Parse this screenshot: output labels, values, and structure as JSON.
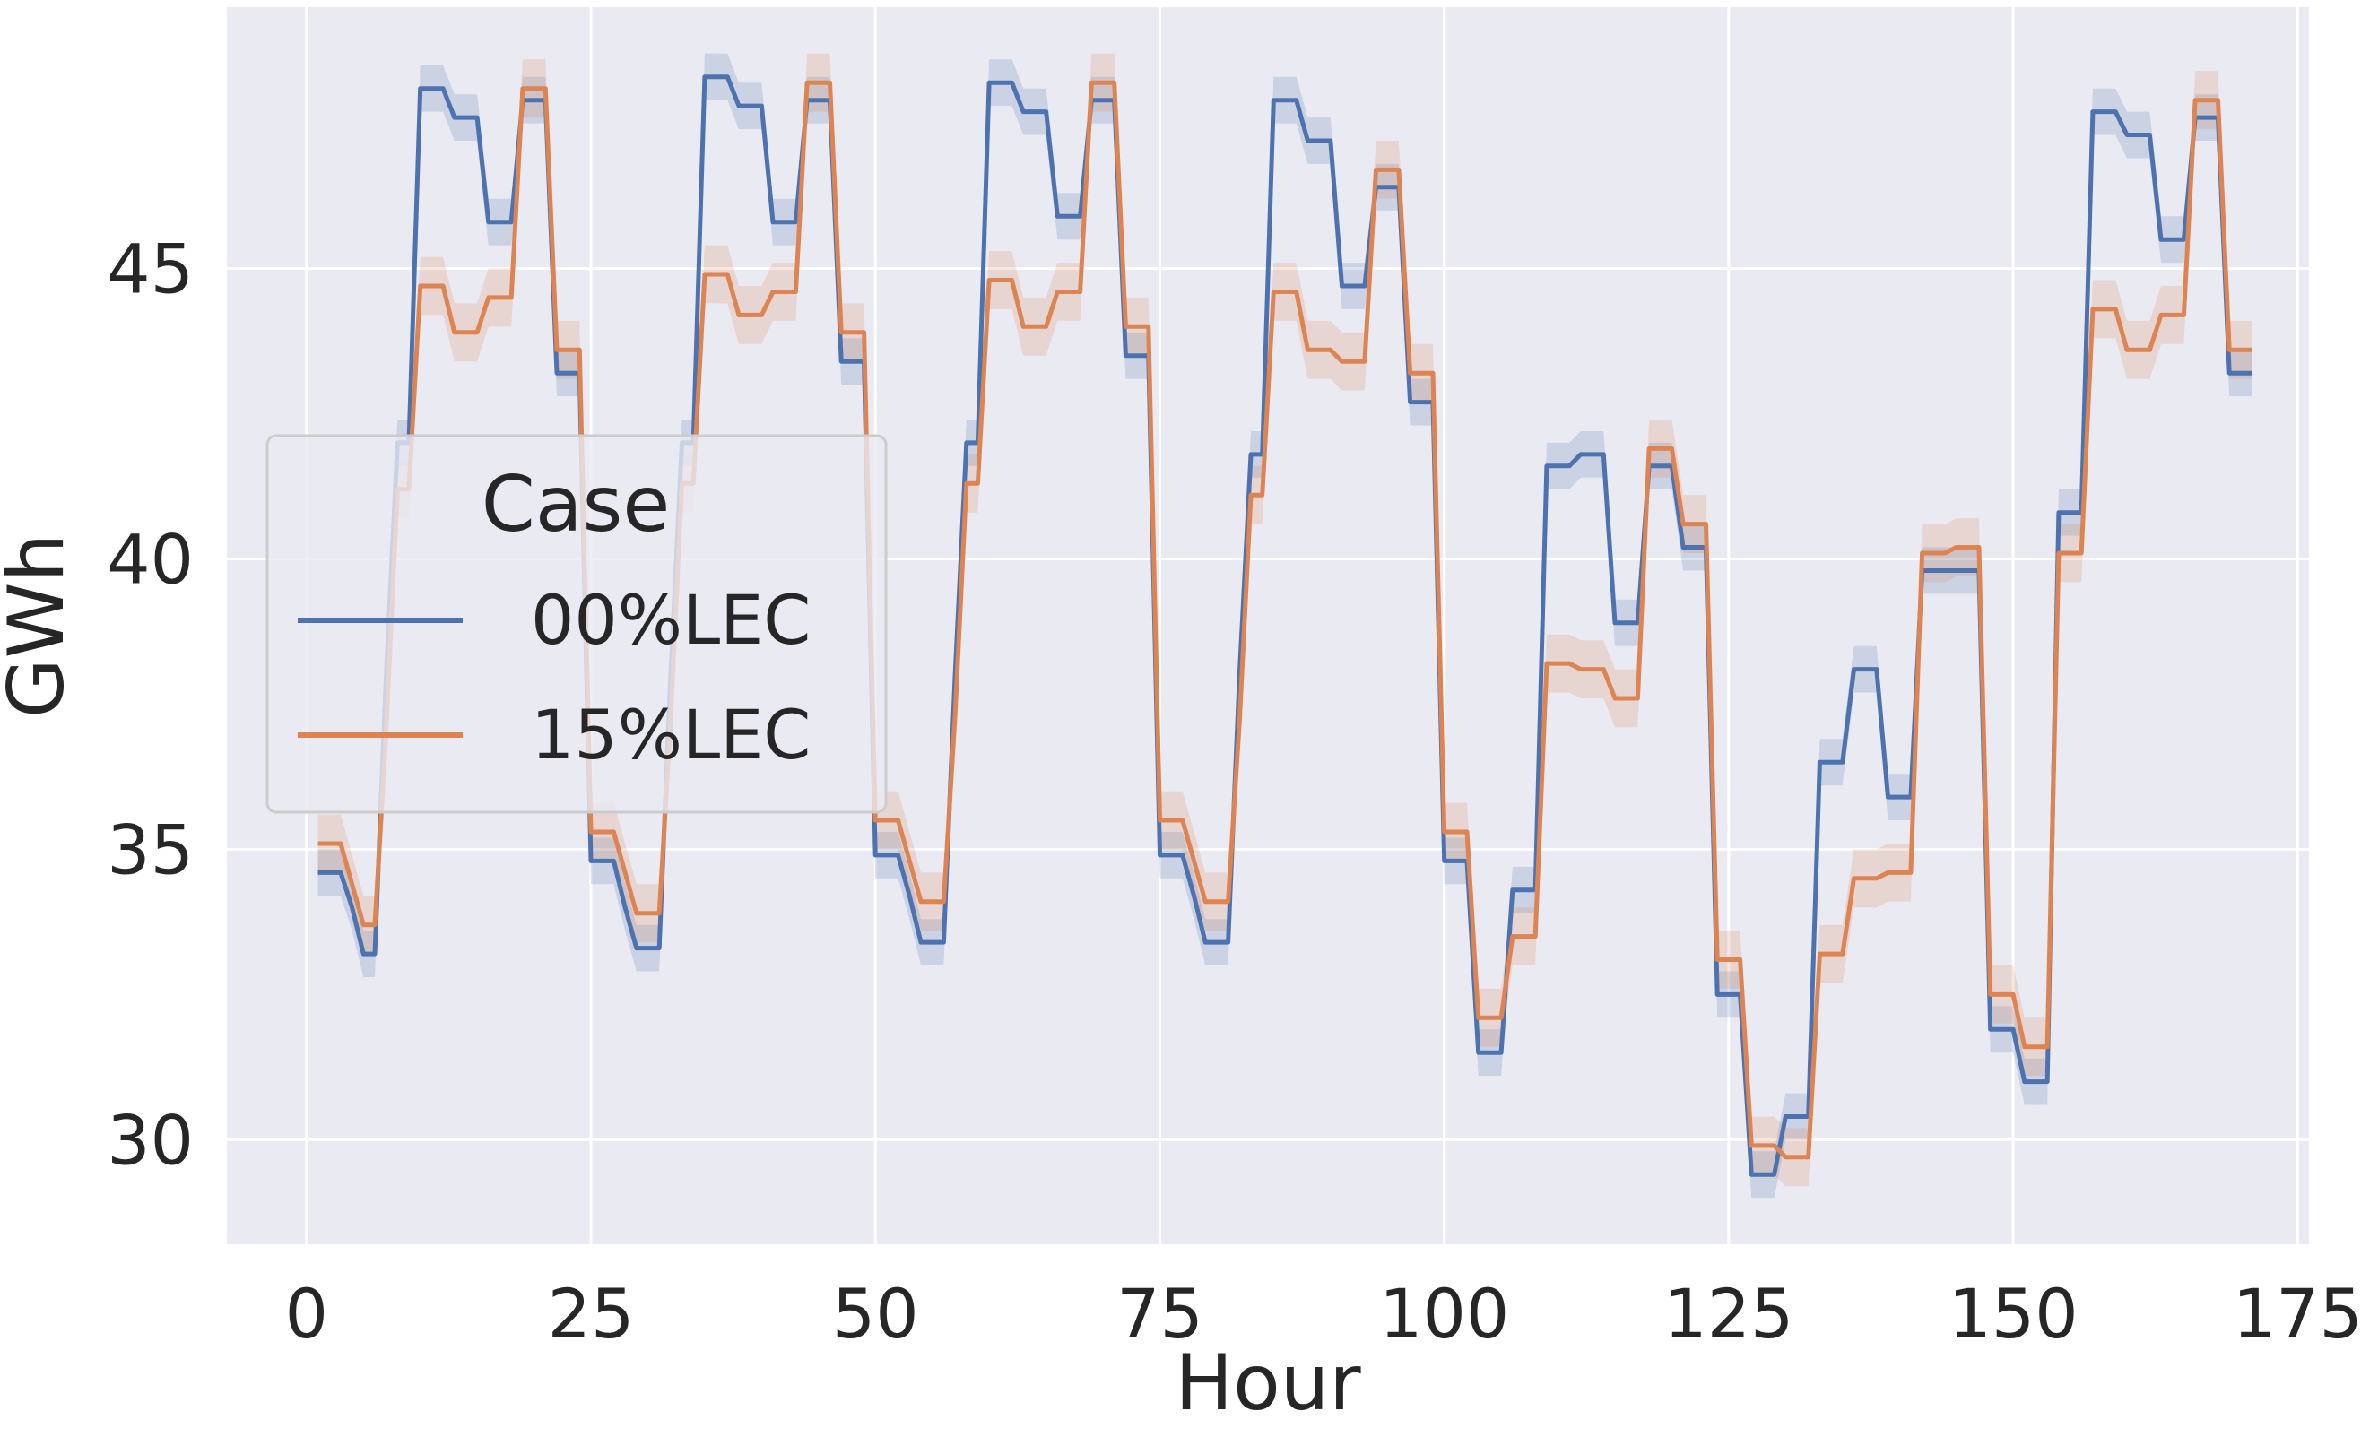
{
  "chart_data": {
    "type": "line",
    "xlabel": "Hour",
    "ylabel": "GWh",
    "xlim": [
      -7,
      176
    ],
    "ylim": [
      28.2,
      49.5
    ],
    "xticks": [
      0,
      25,
      50,
      75,
      100,
      125,
      150,
      175
    ],
    "yticks": [
      30,
      35,
      40,
      45
    ],
    "xtick_labels": [
      "0",
      "25",
      "50",
      "75",
      "100",
      "125",
      "150",
      "175"
    ],
    "ytick_labels": [
      "30",
      "35",
      "40",
      "45"
    ],
    "grid": true,
    "background": "#eaeaf2",
    "legend": {
      "title": "Case",
      "placement": "center-left",
      "entries": [
        "00%LEC",
        "15%LEC"
      ]
    },
    "series": [
      {
        "name": "00%LEC",
        "color": "#4c72b0",
        "band_halfwidth": 0.4,
        "steps": [
          [
            1,
            34.6
          ],
          [
            3,
            34.6
          ],
          [
            4,
            34.0
          ],
          [
            5,
            33.2
          ],
          [
            6,
            33.2
          ],
          [
            7,
            38.0
          ],
          [
            8,
            42.0
          ],
          [
            9,
            42.0
          ],
          [
            10,
            48.1
          ],
          [
            12,
            48.1
          ],
          [
            13,
            47.6
          ],
          [
            15,
            47.6
          ],
          [
            16,
            45.8
          ],
          [
            18,
            45.8
          ],
          [
            19,
            47.9
          ],
          [
            21,
            47.9
          ],
          [
            22,
            43.2
          ],
          [
            24,
            43.2
          ],
          [
            25,
            34.8
          ],
          [
            27,
            34.8
          ],
          [
            28,
            34.0
          ],
          [
            29,
            33.3
          ],
          [
            31,
            33.3
          ],
          [
            32,
            38.0
          ],
          [
            33,
            42.0
          ],
          [
            34,
            42.0
          ],
          [
            35,
            48.3
          ],
          [
            37,
            48.3
          ],
          [
            38,
            47.8
          ],
          [
            40,
            47.8
          ],
          [
            41,
            45.8
          ],
          [
            43,
            45.8
          ],
          [
            44,
            47.9
          ],
          [
            46,
            47.9
          ],
          [
            47,
            43.4
          ],
          [
            49,
            43.4
          ],
          [
            50,
            34.9
          ],
          [
            52,
            34.9
          ],
          [
            53,
            34.2
          ],
          [
            54,
            33.4
          ],
          [
            56,
            33.4
          ],
          [
            57,
            38.0
          ],
          [
            58,
            42.0
          ],
          [
            59,
            42.0
          ],
          [
            60,
            48.2
          ],
          [
            62,
            48.2
          ],
          [
            63,
            47.7
          ],
          [
            65,
            47.7
          ],
          [
            66,
            45.9
          ],
          [
            68,
            45.9
          ],
          [
            69,
            47.9
          ],
          [
            71,
            47.9
          ],
          [
            72,
            43.5
          ],
          [
            74,
            43.5
          ],
          [
            75,
            34.9
          ],
          [
            77,
            34.9
          ],
          [
            78,
            34.2
          ],
          [
            79,
            33.4
          ],
          [
            81,
            33.4
          ],
          [
            82,
            38.0
          ],
          [
            83,
            41.8
          ],
          [
            84,
            41.8
          ],
          [
            85,
            47.9
          ],
          [
            87,
            47.9
          ],
          [
            88,
            47.2
          ],
          [
            90,
            47.2
          ],
          [
            91,
            44.7
          ],
          [
            93,
            44.7
          ],
          [
            94,
            46.4
          ],
          [
            96,
            46.4
          ],
          [
            97,
            42.7
          ],
          [
            99,
            42.7
          ],
          [
            100,
            34.8
          ],
          [
            102,
            34.8
          ],
          [
            103,
            31.5
          ],
          [
            105,
            31.5
          ],
          [
            106,
            34.3
          ],
          [
            108,
            34.3
          ],
          [
            109,
            41.6
          ],
          [
            111,
            41.6
          ],
          [
            112,
            41.8
          ],
          [
            114,
            41.8
          ],
          [
            115,
            38.9
          ],
          [
            117,
            38.9
          ],
          [
            118,
            41.6
          ],
          [
            120,
            41.6
          ],
          [
            121,
            40.2
          ],
          [
            123,
            40.2
          ],
          [
            124,
            32.5
          ],
          [
            126,
            32.5
          ],
          [
            127,
            29.4
          ],
          [
            129,
            29.4
          ],
          [
            130,
            30.4
          ],
          [
            132,
            30.4
          ],
          [
            133,
            36.5
          ],
          [
            135,
            36.5
          ],
          [
            136,
            38.1
          ],
          [
            138,
            38.1
          ],
          [
            139,
            35.9
          ],
          [
            141,
            35.9
          ],
          [
            142,
            39.8
          ],
          [
            144,
            39.8
          ],
          [
            145,
            39.8
          ],
          [
            147,
            39.8
          ],
          [
            148,
            31.9
          ],
          [
            150,
            31.9
          ],
          [
            151,
            31.0
          ],
          [
            153,
            31.0
          ],
          [
            154,
            40.8
          ],
          [
            156,
            40.8
          ],
          [
            157,
            47.7
          ],
          [
            159,
            47.7
          ],
          [
            160,
            47.3
          ],
          [
            162,
            47.3
          ],
          [
            163,
            45.5
          ],
          [
            165,
            45.5
          ],
          [
            166,
            47.6
          ],
          [
            168,
            47.6
          ],
          [
            169,
            43.2
          ],
          [
            171,
            43.2
          ]
        ]
      },
      {
        "name": "15%LEC",
        "color": "#dd8452",
        "band_halfwidth": 0.5,
        "steps": [
          [
            1,
            35.1
          ],
          [
            3,
            35.1
          ],
          [
            4,
            34.4
          ],
          [
            5,
            33.7
          ],
          [
            6,
            33.7
          ],
          [
            7,
            37.0
          ],
          [
            8,
            41.2
          ],
          [
            9,
            41.2
          ],
          [
            10,
            44.7
          ],
          [
            12,
            44.7
          ],
          [
            13,
            43.9
          ],
          [
            15,
            43.9
          ],
          [
            16,
            44.5
          ],
          [
            18,
            44.5
          ],
          [
            19,
            48.1
          ],
          [
            21,
            48.1
          ],
          [
            22,
            43.6
          ],
          [
            24,
            43.6
          ],
          [
            25,
            35.3
          ],
          [
            27,
            35.3
          ],
          [
            28,
            34.6
          ],
          [
            29,
            33.9
          ],
          [
            31,
            33.9
          ],
          [
            32,
            37.2
          ],
          [
            33,
            41.3
          ],
          [
            34,
            41.3
          ],
          [
            35,
            44.9
          ],
          [
            37,
            44.9
          ],
          [
            38,
            44.2
          ],
          [
            40,
            44.2
          ],
          [
            41,
            44.6
          ],
          [
            43,
            44.6
          ],
          [
            44,
            48.2
          ],
          [
            46,
            48.2
          ],
          [
            47,
            43.9
          ],
          [
            49,
            43.9
          ],
          [
            50,
            35.5
          ],
          [
            52,
            35.5
          ],
          [
            53,
            34.8
          ],
          [
            54,
            34.1
          ],
          [
            56,
            34.1
          ],
          [
            57,
            37.3
          ],
          [
            58,
            41.3
          ],
          [
            59,
            41.3
          ],
          [
            60,
            44.8
          ],
          [
            62,
            44.8
          ],
          [
            63,
            44.0
          ],
          [
            65,
            44.0
          ],
          [
            66,
            44.6
          ],
          [
            68,
            44.6
          ],
          [
            69,
            48.2
          ],
          [
            71,
            48.2
          ],
          [
            72,
            44.0
          ],
          [
            74,
            44.0
          ],
          [
            75,
            35.5
          ],
          [
            77,
            35.5
          ],
          [
            78,
            34.8
          ],
          [
            79,
            34.1
          ],
          [
            81,
            34.1
          ],
          [
            82,
            37.2
          ],
          [
            83,
            41.1
          ],
          [
            84,
            41.1
          ],
          [
            85,
            44.6
          ],
          [
            87,
            44.6
          ],
          [
            88,
            43.6
          ],
          [
            90,
            43.6
          ],
          [
            91,
            43.4
          ],
          [
            93,
            43.4
          ],
          [
            94,
            46.7
          ],
          [
            96,
            46.7
          ],
          [
            97,
            43.2
          ],
          [
            99,
            43.2
          ],
          [
            100,
            35.3
          ],
          [
            102,
            35.3
          ],
          [
            103,
            32.1
          ],
          [
            105,
            32.1
          ],
          [
            106,
            33.5
          ],
          [
            108,
            33.5
          ],
          [
            109,
            38.2
          ],
          [
            111,
            38.2
          ],
          [
            112,
            38.1
          ],
          [
            114,
            38.1
          ],
          [
            115,
            37.6
          ],
          [
            117,
            37.6
          ],
          [
            118,
            41.9
          ],
          [
            120,
            41.9
          ],
          [
            121,
            40.6
          ],
          [
            123,
            40.6
          ],
          [
            124,
            33.1
          ],
          [
            126,
            33.1
          ],
          [
            127,
            29.9
          ],
          [
            129,
            29.9
          ],
          [
            130,
            29.7
          ],
          [
            132,
            29.7
          ],
          [
            133,
            33.2
          ],
          [
            135,
            33.2
          ],
          [
            136,
            34.5
          ],
          [
            138,
            34.5
          ],
          [
            139,
            34.6
          ],
          [
            141,
            34.6
          ],
          [
            142,
            40.1
          ],
          [
            144,
            40.1
          ],
          [
            145,
            40.2
          ],
          [
            147,
            40.2
          ],
          [
            148,
            32.5
          ],
          [
            150,
            32.5
          ],
          [
            151,
            31.6
          ],
          [
            153,
            31.6
          ],
          [
            154,
            40.1
          ],
          [
            156,
            40.1
          ],
          [
            157,
            44.3
          ],
          [
            159,
            44.3
          ],
          [
            160,
            43.6
          ],
          [
            162,
            43.6
          ],
          [
            163,
            44.2
          ],
          [
            165,
            44.2
          ],
          [
            166,
            47.9
          ],
          [
            168,
            47.9
          ],
          [
            169,
            43.6
          ],
          [
            171,
            43.6
          ]
        ]
      }
    ]
  }
}
